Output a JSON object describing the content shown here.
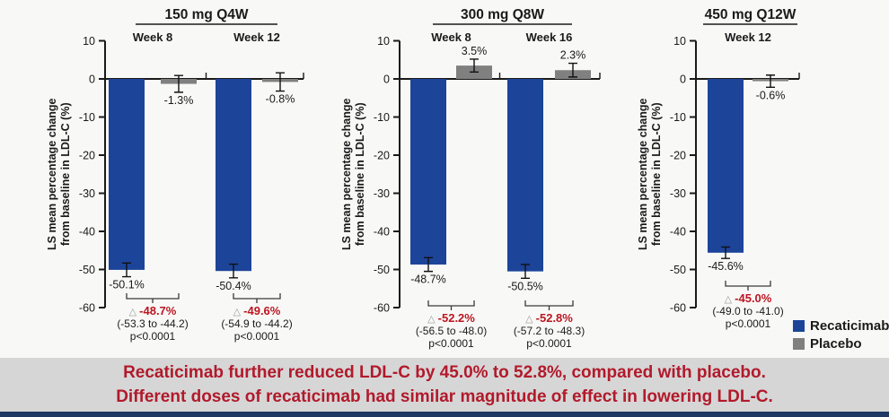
{
  "colors": {
    "recaticimab": "#1c4499",
    "placebo": "#808080",
    "diff_red": "#bb1622",
    "footer_text": "#b11a2b",
    "footer_bg": "#d6d6d6",
    "bottom_strip": "#203864",
    "axis": "#1a1a1a"
  },
  "legend": {
    "recaticimab": "Recaticimab",
    "placebo": "Placebo"
  },
  "footer": {
    "line1": "Recaticimab further reduced LDL-C by 45.0% to 52.8%, compared with placebo.",
    "line2": "Different doses of recaticimab had similar magnitude of effect in lowering LDL-C."
  },
  "chart_data": {
    "type": "bar",
    "ylabel_lines": [
      "LS mean percentage change",
      "from baseline in LDL-C (%)"
    ],
    "ylim": [
      -60,
      10
    ],
    "yticks": [
      10,
      0,
      -10,
      -20,
      -30,
      -40,
      -50,
      -60
    ],
    "series_names": [
      "Recaticimab",
      "Placebo"
    ],
    "triangle_glyph": "△",
    "panels": [
      {
        "title": "150 mg Q4W",
        "groups": [
          {
            "week": "Week 8",
            "recaticimab": {
              "value": -50.1,
              "label": "-50.1%",
              "err": 1.8
            },
            "placebo": {
              "value": -1.3,
              "label": "-1.3%",
              "err": 2.2
            },
            "diff": {
              "delta": "-48.7%",
              "ci": "(-53.3 to -44.2)",
              "p": "p<0.0001"
            }
          },
          {
            "week": "Week 12",
            "recaticimab": {
              "value": -50.4,
              "label": "-50.4%",
              "err": 1.8
            },
            "placebo": {
              "value": -0.8,
              "label": "-0.8%",
              "err": 2.4
            },
            "diff": {
              "delta": "-49.6%",
              "ci": "(-54.9 to -44.2)",
              "p": "p<0.0001"
            }
          }
        ]
      },
      {
        "title": "300 mg Q8W",
        "groups": [
          {
            "week": "Week 8",
            "recaticimab": {
              "value": -48.7,
              "label": "-48.7%",
              "err": 1.8
            },
            "placebo": {
              "value": 3.5,
              "label": "3.5%",
              "err": 1.7
            },
            "diff": {
              "delta": "-52.2%",
              "ci": "(-56.5 to -48.0)",
              "p": "p<0.0001"
            }
          },
          {
            "week": "Week 16",
            "recaticimab": {
              "value": -50.5,
              "label": "-50.5%",
              "err": 1.8
            },
            "placebo": {
              "value": 2.3,
              "label": "2.3%",
              "err": 1.8
            },
            "diff": {
              "delta": "-52.8%",
              "ci": "(-57.2 to -48.3)",
              "p": "p<0.0001"
            }
          }
        ]
      },
      {
        "title": "450 mg Q12W",
        "groups": [
          {
            "week": "Week 12",
            "recaticimab": {
              "value": -45.6,
              "label": "-45.6%",
              "err": 1.5
            },
            "placebo": {
              "value": -0.6,
              "label": "-0.6%",
              "err": 1.6
            },
            "diff": {
              "delta": "-45.0%",
              "ci": "(-49.0 to -41.0)",
              "p": "p<0.0001"
            }
          }
        ]
      }
    ]
  }
}
